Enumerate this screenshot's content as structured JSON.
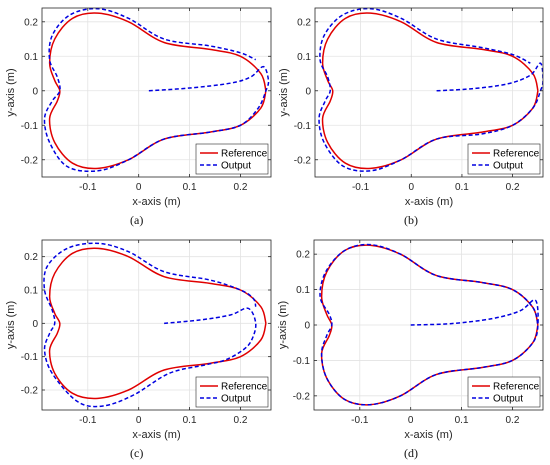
{
  "chart_data": [
    {
      "type": "line",
      "caption": "(a)",
      "xlabel": "x-axis (m)",
      "ylabel": "y-axis (m)",
      "xlim": [
        -0.19,
        0.26
      ],
      "ylim": [
        -0.25,
        0.24
      ],
      "xticks": [
        -0.1,
        0,
        0.1,
        0.2
      ],
      "xtick_labels": [
        "-0.1",
        "0",
        "0.1",
        "0.2"
      ],
      "yticks": [
        -0.2,
        -0.1,
        0,
        0.1,
        0.2
      ],
      "ytick_labels": [
        "-0.2",
        "-0.1",
        "0",
        "0.1",
        "0.2"
      ],
      "grid": true,
      "legend": "bottom-right",
      "series": [
        {
          "name": "Reference",
          "color": "#e00000",
          "style": "solid",
          "x": [
            0.25,
            0.24,
            0.2,
            0.14,
            0.05,
            -0.02,
            -0.08,
            -0.13,
            -0.165,
            -0.175,
            -0.165,
            -0.155,
            -0.16,
            -0.175,
            -0.165,
            -0.13,
            -0.08,
            -0.02,
            0.05,
            0.14,
            0.2,
            0.24,
            0.25
          ],
          "y": [
            0.0,
            0.05,
            0.1,
            0.12,
            0.14,
            0.2,
            0.225,
            0.21,
            0.15,
            0.08,
            0.03,
            0.0,
            -0.03,
            -0.08,
            -0.15,
            -0.21,
            -0.225,
            -0.2,
            -0.14,
            -0.12,
            -0.1,
            -0.05,
            0.0
          ]
        },
        {
          "name": "Output",
          "color": "#0000e0",
          "style": "dashed",
          "x": [
            0.02,
            0.1,
            0.18,
            0.22,
            0.245,
            0.255,
            0.25,
            0.235,
            0.2,
            0.14,
            0.05,
            -0.02,
            -0.08,
            -0.14,
            -0.175,
            -0.185,
            -0.17,
            -0.155,
            -0.16,
            -0.175,
            -0.17,
            -0.135,
            -0.08,
            -0.02,
            0.05,
            0.14,
            0.2,
            0.23
          ],
          "y": [
            0.0,
            0.008,
            0.022,
            0.04,
            0.07,
            0.03,
            0.0,
            -0.05,
            -0.1,
            -0.12,
            -0.14,
            -0.2,
            -0.232,
            -0.22,
            -0.15,
            -0.08,
            -0.03,
            0.0,
            0.04,
            0.09,
            0.16,
            0.22,
            0.238,
            0.21,
            0.15,
            0.13,
            0.11,
            0.09
          ]
        }
      ]
    },
    {
      "type": "line",
      "caption": "(b)",
      "xlabel": "x-axis (m)",
      "ylabel": "y-axis (m)",
      "xlim": [
        -0.19,
        0.26
      ],
      "ylim": [
        -0.25,
        0.24
      ],
      "xticks": [
        -0.1,
        0,
        0.1,
        0.2
      ],
      "xtick_labels": [
        "-0.1",
        "0",
        "0.1",
        "0.2"
      ],
      "yticks": [
        -0.2,
        -0.1,
        0,
        0.1,
        0.2
      ],
      "ytick_labels": [
        "-0.2",
        "-0.1",
        "0",
        "0.1",
        "0.2"
      ],
      "grid": true,
      "legend": "bottom-right",
      "series": [
        {
          "name": "Reference",
          "color": "#e00000",
          "style": "solid",
          "x": [
            0.25,
            0.24,
            0.2,
            0.14,
            0.05,
            -0.02,
            -0.08,
            -0.13,
            -0.165,
            -0.175,
            -0.165,
            -0.155,
            -0.16,
            -0.175,
            -0.165,
            -0.13,
            -0.08,
            -0.02,
            0.05,
            0.14,
            0.2,
            0.24,
            0.25
          ],
          "y": [
            0.0,
            0.05,
            0.1,
            0.12,
            0.14,
            0.2,
            0.225,
            0.21,
            0.15,
            0.08,
            0.03,
            0.0,
            -0.03,
            -0.08,
            -0.15,
            -0.21,
            -0.225,
            -0.2,
            -0.14,
            -0.12,
            -0.1,
            -0.05,
            0.0
          ]
        },
        {
          "name": "Output",
          "color": "#0000e0",
          "style": "dashed",
          "x": [
            0.05,
            0.12,
            0.19,
            0.235,
            0.255,
            0.26,
            0.255,
            0.24,
            0.2,
            0.14,
            0.05,
            -0.02,
            -0.08,
            -0.135,
            -0.172,
            -0.182,
            -0.17,
            -0.16,
            -0.165,
            -0.18,
            -0.172,
            -0.135,
            -0.08,
            -0.02,
            0.05,
            0.14,
            0.2,
            0.235
          ],
          "y": [
            0.0,
            0.006,
            0.02,
            0.045,
            0.08,
            0.03,
            0.0,
            -0.05,
            -0.1,
            -0.125,
            -0.14,
            -0.2,
            -0.232,
            -0.218,
            -0.15,
            -0.08,
            -0.03,
            0.0,
            0.04,
            0.09,
            0.16,
            0.22,
            0.238,
            0.21,
            0.15,
            0.125,
            0.105,
            0.08
          ]
        }
      ]
    },
    {
      "type": "line",
      "caption": "(c)",
      "xlabel": "x-axis (m)",
      "ylabel": "y-axis (m)",
      "xlim": [
        -0.19,
        0.26
      ],
      "ylim": [
        -0.26,
        0.25
      ],
      "xticks": [
        -0.1,
        0,
        0.1,
        0.2
      ],
      "xtick_labels": [
        "-0.1",
        "0",
        "0.1",
        "0.2"
      ],
      "yticks": [
        -0.2,
        -0.1,
        0,
        0.1,
        0.2
      ],
      "ytick_labels": [
        "-0.2",
        "-0.1",
        "0",
        "0.1",
        "0.2"
      ],
      "grid": true,
      "legend": "bottom-right",
      "series": [
        {
          "name": "Reference",
          "color": "#e00000",
          "style": "solid",
          "x": [
            0.25,
            0.24,
            0.2,
            0.14,
            0.05,
            -0.02,
            -0.08,
            -0.13,
            -0.165,
            -0.175,
            -0.165,
            -0.155,
            -0.16,
            -0.175,
            -0.165,
            -0.13,
            -0.08,
            -0.02,
            0.05,
            0.14,
            0.2,
            0.24,
            0.25
          ],
          "y": [
            0.0,
            0.05,
            0.1,
            0.12,
            0.14,
            0.2,
            0.225,
            0.21,
            0.15,
            0.08,
            0.03,
            0.0,
            -0.03,
            -0.08,
            -0.15,
            -0.21,
            -0.225,
            -0.2,
            -0.14,
            -0.12,
            -0.1,
            -0.05,
            0.0
          ]
        },
        {
          "name": "Output",
          "color": "#0000e0",
          "style": "dashed",
          "x": [
            0.05,
            0.12,
            0.18,
            0.215,
            0.23,
            0.222,
            0.205,
            0.17,
            0.13,
            0.06,
            -0.01,
            -0.07,
            -0.12,
            -0.17,
            -0.185,
            -0.175,
            -0.165,
            -0.17,
            -0.185,
            -0.18,
            -0.14,
            -0.08,
            -0.02,
            0.05,
            0.14,
            0.2,
            0.225,
            0.23
          ],
          "y": [
            0.0,
            0.01,
            0.025,
            0.045,
            0.0,
            -0.05,
            -0.08,
            -0.11,
            -0.125,
            -0.15,
            -0.215,
            -0.248,
            -0.235,
            -0.15,
            -0.08,
            -0.03,
            0.0,
            0.04,
            0.1,
            0.17,
            0.225,
            0.24,
            0.215,
            0.155,
            0.13,
            0.1,
            0.075,
            0.05
          ]
        }
      ]
    },
    {
      "type": "line",
      "caption": "(d)",
      "xlabel": "x-axis (m)",
      "ylabel": "y-axis (m)",
      "xlim": [
        -0.19,
        0.26
      ],
      "ylim": [
        -0.24,
        0.24
      ],
      "xticks": [
        -0.1,
        0,
        0.1,
        0.2
      ],
      "xtick_labels": [
        "-0.1",
        "0",
        "0.1",
        "0.2"
      ],
      "yticks": [
        -0.2,
        -0.1,
        0,
        0.1,
        0.2
      ],
      "ytick_labels": [
        "-0.2",
        "-0.1",
        "0",
        "0.1",
        "0.2"
      ],
      "grid": true,
      "legend": "bottom-right",
      "series": [
        {
          "name": "Reference",
          "color": "#e00000",
          "style": "solid",
          "x": [
            0.25,
            0.24,
            0.2,
            0.14,
            0.05,
            -0.02,
            -0.08,
            -0.13,
            -0.165,
            -0.175,
            -0.165,
            -0.155,
            -0.16,
            -0.175,
            -0.165,
            -0.13,
            -0.08,
            -0.02,
            0.05,
            0.14,
            0.2,
            0.24,
            0.25
          ],
          "y": [
            0.0,
            0.05,
            0.1,
            0.12,
            0.14,
            0.2,
            0.225,
            0.21,
            0.15,
            0.08,
            0.03,
            0.0,
            -0.03,
            -0.08,
            -0.15,
            -0.21,
            -0.225,
            -0.2,
            -0.14,
            -0.12,
            -0.1,
            -0.05,
            0.0
          ]
        },
        {
          "name": "Output",
          "color": "#0000e0",
          "style": "dashed",
          "x": [
            0.0,
            0.08,
            0.16,
            0.215,
            0.245,
            0.25,
            0.24,
            0.2,
            0.14,
            0.05,
            -0.02,
            -0.08,
            -0.13,
            -0.165,
            -0.175,
            -0.165,
            -0.155,
            -0.16,
            -0.178,
            -0.167,
            -0.13,
            -0.08,
            -0.02,
            0.05,
            0.14,
            0.2,
            0.24,
            0.25
          ],
          "y": [
            0.0,
            0.004,
            0.018,
            0.04,
            0.07,
            0.0,
            -0.05,
            -0.1,
            -0.12,
            -0.14,
            -0.2,
            -0.225,
            -0.21,
            -0.15,
            -0.08,
            -0.03,
            0.0,
            0.03,
            0.08,
            0.15,
            0.21,
            0.227,
            0.2,
            0.14,
            0.12,
            0.1,
            0.05,
            0.0
          ]
        }
      ]
    }
  ]
}
